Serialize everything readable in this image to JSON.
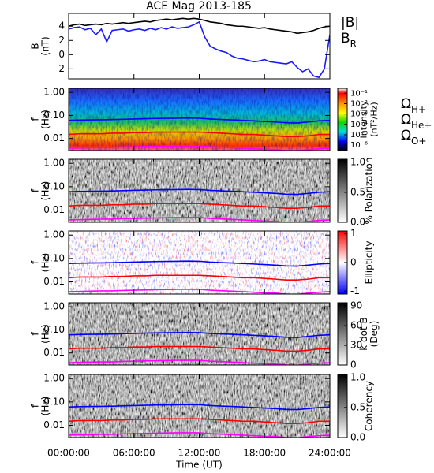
{
  "chart_data": [
    {
      "type": "line",
      "title": "ACE Mag 2013-185",
      "xlabel": "Time (UT)",
      "ylabel": [
        "B",
        "(nT)"
      ],
      "xlim": [
        0,
        24
      ],
      "xticks": [
        {
          "value": 0,
          "label": "00:00:00"
        },
        {
          "value": 6,
          "label": "06:00:00"
        },
        {
          "value": 12,
          "label": "12:00:00"
        },
        {
          "value": 18,
          "label": "18:00:00"
        },
        {
          "value": 24,
          "label": "24:00:00"
        }
      ],
      "ylim": [
        -3.4,
        5.8
      ],
      "yticks": [
        -2,
        0,
        2,
        4
      ],
      "x": [
        0,
        0.5,
        1,
        1.5,
        2,
        2.5,
        3,
        3.5,
        4,
        4.5,
        5,
        5.5,
        6,
        6.5,
        7,
        7.5,
        8,
        8.5,
        9,
        9.5,
        10,
        10.5,
        11,
        11.5,
        12,
        12.5,
        13,
        13.5,
        14,
        14.5,
        15,
        15.5,
        16,
        16.5,
        17,
        17.5,
        18,
        18.5,
        19,
        19.5,
        20,
        20.5,
        21,
        21.5,
        22,
        22.5,
        23,
        23.5,
        24
      ],
      "series": [
        {
          "name": "|B|",
          "color": "#000000",
          "values": [
            4.0,
            4.2,
            4.3,
            4.1,
            4.2,
            4.3,
            4.2,
            4.4,
            4.3,
            4.4,
            4.5,
            4.4,
            4.5,
            4.6,
            4.7,
            4.6,
            4.8,
            4.9,
            5.0,
            4.9,
            5.0,
            5.1,
            5.0,
            5.1,
            5.0,
            4.8,
            4.6,
            4.5,
            4.4,
            4.2,
            4.1,
            4.0,
            4.0,
            3.9,
            3.8,
            3.7,
            3.8,
            3.6,
            3.5,
            3.4,
            3.3,
            3.2,
            3.0,
            3.1,
            3.2,
            3.4,
            3.7,
            3.9,
            4.0
          ]
        },
        {
          "name": "B",
          "sub": "R",
          "color": "#1a1aff",
          "values": [
            3.6,
            3.8,
            3.9,
            3.5,
            3.7,
            2.8,
            3.6,
            1.8,
            3.4,
            3.5,
            3.6,
            3.3,
            3.5,
            3.6,
            3.4,
            3.7,
            3.5,
            3.8,
            3.6,
            3.9,
            3.7,
            3.8,
            3.9,
            4.2,
            4.6,
            2.5,
            1.2,
            0.8,
            0.5,
            0.3,
            -0.2,
            -0.5,
            -0.6,
            -0.8,
            -1.0,
            -0.9,
            -0.7,
            -1.0,
            -1.1,
            -1.2,
            -1.3,
            -1.0,
            -1.8,
            -2.4,
            -2.0,
            -3.0,
            -3.2,
            -2.0,
            2.8
          ]
        }
      ]
    },
    {
      "type": "heatmap",
      "ylabel": [
        "f",
        "(Hz)"
      ],
      "log_y": true,
      "ylim": [
        0.003,
        1.5
      ],
      "yticks": [
        0.01,
        {
          "value": 0.1,
          "label": "0.10"
        },
        {
          "value": 1,
          "label": "1.00"
        }
      ],
      "colormap": "rainbow",
      "colorbar": {
        "label": [
          "Intensity",
          "(nT²/Hz)"
        ],
        "log": true,
        "clim": [
          3e-07,
          0.3
        ],
        "ticks": [
          {
            "value": 0.1,
            "label": "10⁻¹"
          },
          {
            "value": 0.01,
            "label": "10⁻²"
          },
          {
            "value": 0.001,
            "label": "10⁻³"
          },
          {
            "value": 0.0001,
            "label": "10⁻⁴"
          },
          {
            "value": 1e-05,
            "label": "10⁻⁵"
          },
          {
            "value": 1e-06,
            "label": "10⁻⁶"
          }
        ]
      },
      "x": [
        0,
        1,
        2,
        3,
        4,
        5,
        6,
        7,
        8,
        9,
        10,
        11,
        12,
        13,
        14,
        15,
        16,
        17,
        18,
        19,
        20,
        21,
        22,
        23,
        24
      ],
      "series": [
        {
          "name": "Ω",
          "sub": "H+",
          "color": "#0000ff",
          "values": [
            0.061,
            0.063,
            0.064,
            0.065,
            0.066,
            0.068,
            0.07,
            0.072,
            0.074,
            0.075,
            0.076,
            0.077,
            0.076,
            0.07,
            0.067,
            0.064,
            0.061,
            0.058,
            0.055,
            0.052,
            0.048,
            0.047,
            0.052,
            0.058,
            0.061
          ]
        },
        {
          "name": "Ω",
          "sub": "He+",
          "color": "#ff0000",
          "values": [
            0.015,
            0.016,
            0.016,
            0.016,
            0.017,
            0.017,
            0.018,
            0.018,
            0.019,
            0.019,
            0.019,
            0.019,
            0.019,
            0.018,
            0.017,
            0.016,
            0.015,
            0.015,
            0.014,
            0.013,
            0.012,
            0.012,
            0.013,
            0.015,
            0.015
          ]
        },
        {
          "name": "Ω",
          "sub": "O+",
          "color": "#ff00ff",
          "values": [
            0.0038,
            0.0039,
            0.004,
            0.0041,
            0.0041,
            0.0043,
            0.0044,
            0.0045,
            0.0046,
            0.0047,
            0.0048,
            0.0048,
            0.0048,
            0.0044,
            0.0042,
            0.004,
            0.0038,
            0.0036,
            0.0034,
            0.0033,
            0.003,
            0.0029,
            0.0033,
            0.0036,
            0.0038
          ]
        }
      ]
    },
    {
      "type": "heatmap",
      "ylabel": [
        "f",
        "(Hz)"
      ],
      "log_y": true,
      "ylim": [
        0.003,
        1.5
      ],
      "yticks": [
        0.01,
        {
          "value": 0.1,
          "label": "0.10"
        },
        {
          "value": 1,
          "label": "1.00"
        }
      ],
      "colormap": "gray",
      "colorbar": {
        "label": [
          "% Polarization"
        ],
        "log": false,
        "clim": [
          0,
          1.05
        ],
        "ticks": [
          {
            "value": 0,
            "label": "0.0"
          },
          0.5,
          {
            "value": 1,
            "label": "1.0"
          }
        ]
      }
    },
    {
      "type": "heatmap",
      "ylabel": [
        "f",
        "(Hz)"
      ],
      "log_y": true,
      "ylim": [
        0.003,
        1.5
      ],
      "yticks": [
        0.01,
        {
          "value": 0.1,
          "label": "0.10"
        },
        {
          "value": 1,
          "label": "1.00"
        }
      ],
      "colormap": "bwr",
      "colorbar": {
        "label": [
          "Ellipticity"
        ],
        "log": false,
        "clim": [
          -1.1,
          1.1
        ],
        "ticks": [
          -1,
          0,
          1
        ]
      }
    },
    {
      "type": "heatmap",
      "ylabel": [
        "f",
        "(Hz)"
      ],
      "log_y": true,
      "ylim": [
        0.003,
        1.5
      ],
      "yticks": [
        0.01,
        {
          "value": 0.1,
          "label": "0.10"
        },
        {
          "value": 1,
          "label": "1.00"
        }
      ],
      "colormap": "gray",
      "colorbar": {
        "label": [
          "k dot B",
          "(Deg)"
        ],
        "log": false,
        "clim": [
          0,
          95
        ],
        "ticks": [
          0,
          30,
          60,
          90
        ]
      }
    },
    {
      "type": "heatmap",
      "ylabel": [
        "f",
        "(Hz)"
      ],
      "log_y": true,
      "ylim": [
        0.003,
        1.5
      ],
      "yticks": [
        0.01,
        {
          "value": 0.1,
          "label": "0.10"
        },
        {
          "value": 1,
          "label": "1.00"
        }
      ],
      "colormap": "gray",
      "colorbar": {
        "label": [
          "Coherency"
        ],
        "log": false,
        "clim": [
          0,
          1.05
        ],
        "ticks": [
          {
            "value": 0,
            "label": "0.0"
          },
          0.5,
          {
            "value": 1,
            "label": "1.0"
          }
        ]
      }
    }
  ]
}
